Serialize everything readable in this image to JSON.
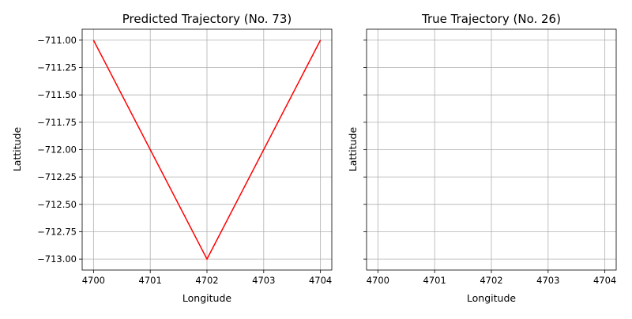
{
  "chart_data": [
    {
      "type": "line",
      "title": "Predicted Trajectory (No. 73)",
      "xlabel": "Longitude",
      "ylabel": "Lattitude",
      "xlim": [
        4699.8,
        4704.2
      ],
      "ylim": [
        -713.1,
        -710.9
      ],
      "x_ticks": [
        4700,
        4701,
        4702,
        4703,
        4704
      ],
      "x_tick_labels": [
        "4700",
        "4701",
        "4702",
        "4703",
        "4704"
      ],
      "y_ticks": [
        -711.0,
        -711.25,
        -711.5,
        -711.75,
        -712.0,
        -712.25,
        -712.5,
        -712.75,
        -713.0
      ],
      "y_tick_labels": [
        "−711.00",
        "−711.25",
        "−711.50",
        "−711.75",
        "−712.00",
        "−712.25",
        "−712.50",
        "−712.75",
        "−713.00"
      ],
      "grid": true,
      "series": [
        {
          "color": "#ff0000",
          "x": [
            4700,
            4702,
            4704
          ],
          "y": [
            -711.0,
            -713.0,
            -711.0
          ]
        }
      ]
    },
    {
      "type": "line",
      "title": "True Trajectory (No. 26)",
      "xlabel": "Longitude",
      "ylabel": "Lattitude",
      "xlim": [
        4699.8,
        4704.2
      ],
      "ylim": [
        -713.1,
        -710.9
      ],
      "x_ticks": [
        4700,
        4701,
        4702,
        4703,
        4704
      ],
      "x_tick_labels": [
        "4700",
        "4701",
        "4702",
        "4703",
        "4704"
      ],
      "y_ticks": [
        -711.0,
        -711.25,
        -711.5,
        -711.75,
        -712.0,
        -712.25,
        -712.5,
        -712.75,
        -713.0
      ],
      "grid": true,
      "shared_y": true,
      "series": []
    }
  ]
}
